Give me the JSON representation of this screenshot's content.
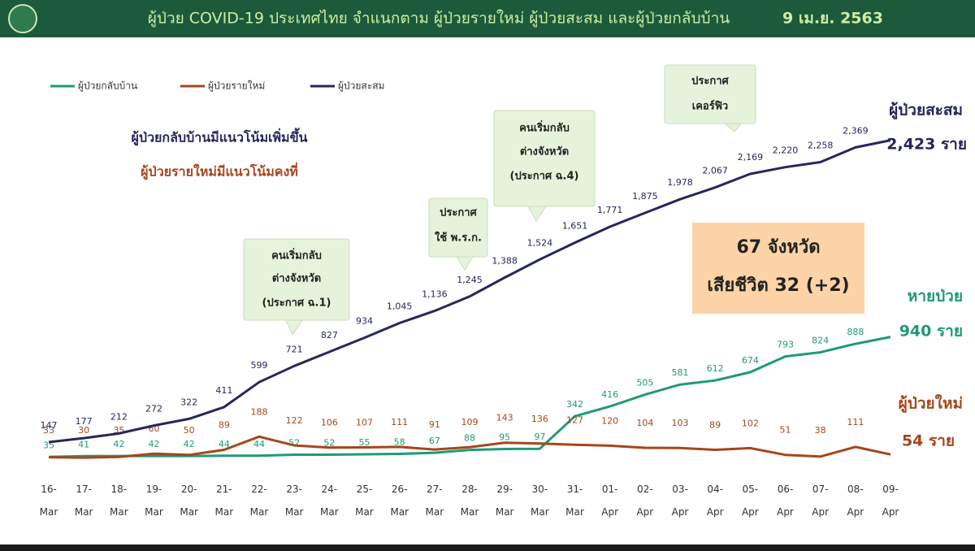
{
  "chart_data": {
    "type": "line",
    "title": "ผู้ป่วย COVID-19 ประเทศไทย จำแนกตาม ผู้ป่วยรายใหม่ ผู้ป่วยสะสม  และผู้ป่วยกลับบ้าน",
    "date": "9 เม.ย. 2563",
    "categories": [
      "16-Mar",
      "17-Mar",
      "18-Mar",
      "19-Mar",
      "20-Mar",
      "21-Mar",
      "22-Mar",
      "23-Mar",
      "24-Mar",
      "25-Mar",
      "26-Mar",
      "27-Mar",
      "28-Mar",
      "29-Mar",
      "30-Mar",
      "31-Mar",
      "01-Apr",
      "02-Apr",
      "03-Apr",
      "04-Apr",
      "05-Apr",
      "06-Apr",
      "07-Apr",
      "08-Apr",
      "09-Apr"
    ],
    "series": [
      {
        "name": "ผู้ป่วยกลับบ้าน",
        "color": "#1f9a78",
        "values": [
          35,
          41,
          42,
          42,
          42,
          44,
          44,
          52,
          52,
          55,
          58,
          67,
          88,
          95,
          97,
          342,
          416,
          505,
          581,
          612,
          674,
          793,
          824,
          888,
          940
        ],
        "value_labels": [
          "35",
          "41",
          "42",
          "42",
          "42",
          "44",
          "44",
          "52",
          "52",
          "55",
          "58",
          "67",
          "88",
          "95",
          "97",
          "342",
          "416",
          "505",
          "581",
          "612",
          "674",
          "793",
          "824",
          "888",
          null
        ]
      },
      {
        "name": "ผู้ป่วยรายใหม่",
        "color": "#a5461c",
        "values": [
          33,
          30,
          35,
          60,
          50,
          89,
          188,
          122,
          106,
          107,
          111,
          91,
          109,
          143,
          136,
          127,
          120,
          104,
          103,
          89,
          102,
          51,
          38,
          111,
          54
        ],
        "value_labels": [
          "33",
          "30",
          "35",
          "60",
          "50",
          "89",
          "188",
          "122",
          "106",
          "107",
          "111",
          "91",
          "109",
          "143",
          "136",
          "127",
          "120",
          "104",
          "103",
          "89",
          "102",
          "51",
          "38",
          "111",
          null
        ]
      },
      {
        "name": "ผู้ป่วยสะสม",
        "color": "#26265e",
        "values": [
          147,
          177,
          212,
          272,
          322,
          411,
          599,
          721,
          827,
          934,
          1045,
          1136,
          1245,
          1388,
          1524,
          1651,
          1771,
          1875,
          1978,
          2067,
          2169,
          2220,
          2258,
          2369,
          2423
        ],
        "value_labels": [
          "147",
          "177",
          "212",
          "272",
          "322",
          "411",
          "599",
          "721",
          "827",
          "934",
          "1,045",
          "1,136",
          "1,245",
          "1,388",
          "1,524",
          "1,651",
          "1,771",
          "1,875",
          "1,978",
          "2,067",
          "2,169",
          "2,220",
          "2,258",
          "2,369",
          null
        ]
      }
    ],
    "ylim": [
      0,
      2500
    ],
    "legend": "top-left",
    "trend_notes": [
      "ผู้ป่วยกลับบ้านมีแนวโน้มเพิ่มขึ้น",
      "ผู้ป่วยรายใหม่มีแนวโน้มคงที่"
    ],
    "callouts": [
      [
        "คนเริ่มกลับ",
        "ต่างจังหวัด",
        "(ประกาศ ฉ.1)"
      ],
      [
        "ประกาศ",
        "ใช้ พ.ร.ก."
      ],
      [
        "คนเริ่มกลับ",
        "ต่างจังหวัด",
        "(ประกาศ ฉ.4)"
      ],
      [
        "ประกาศ",
        "เคอร์ฟิว"
      ]
    ],
    "summary": [
      "67 จังหวัด",
      "เสียชีวิต 32 (+2)"
    ],
    "end_labels": [
      [
        "ผู้ป่วยสะสม",
        "2,423 ราย"
      ],
      [
        "หายป่วย",
        "940 ราย"
      ],
      [
        "ผู้ป่วยใหม่",
        "54 ราย"
      ]
    ]
  }
}
